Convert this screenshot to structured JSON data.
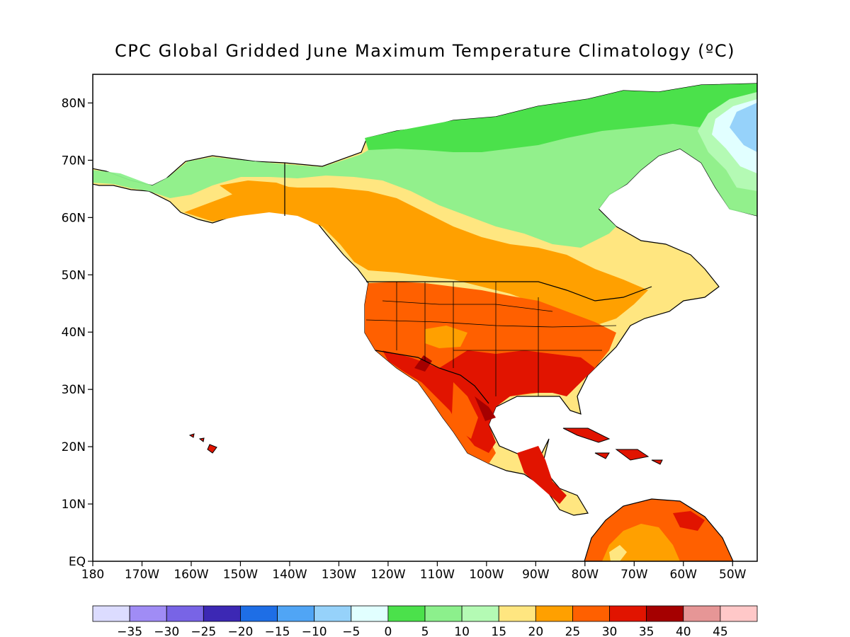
{
  "title": "CPC Global Gridded June Maximum Temperature Climatology (ºC)",
  "map": {
    "lat_labels": [
      "80N",
      "70N",
      "60N",
      "50N",
      "40N",
      "30N",
      "20N",
      "10N",
      "EQ"
    ],
    "lat_values": [
      80,
      70,
      60,
      50,
      40,
      30,
      20,
      10,
      0
    ],
    "lon_labels": [
      "180",
      "170W",
      "160W",
      "150W",
      "140W",
      "130W",
      "120W",
      "110W",
      "100W",
      "90W",
      "80W",
      "70W",
      "60W",
      "50W"
    ],
    "lon_values": [
      -180,
      -170,
      -160,
      -150,
      -140,
      -130,
      -120,
      -110,
      -100,
      -90,
      -80,
      -70,
      -60,
      -50
    ],
    "lon_range": [
      -180,
      -45
    ],
    "lat_range": [
      0,
      85
    ],
    "ocean_color": "#ffffff",
    "border_color": "#000000"
  },
  "colorbar": {
    "colors": [
      "#dcdcff",
      "#a08cf5",
      "#7864e6",
      "#3c28b4",
      "#1e6ee6",
      "#50a5f5",
      "#96d2fa",
      "#e1ffff",
      "#4be14b",
      "#8cf08c",
      "#b4fab4",
      "#ffe680",
      "#ffa000",
      "#ff6000",
      "#e11400",
      "#a50000",
      "#e69696",
      "#ffc8c8"
    ],
    "labels": [
      "−35",
      "−30",
      "−25",
      "−20",
      "−15",
      "−10",
      "−5",
      "0",
      "5",
      "10",
      "15",
      "20",
      "25",
      "30",
      "35",
      "40",
      "45"
    ],
    "unit": "ºC"
  }
}
